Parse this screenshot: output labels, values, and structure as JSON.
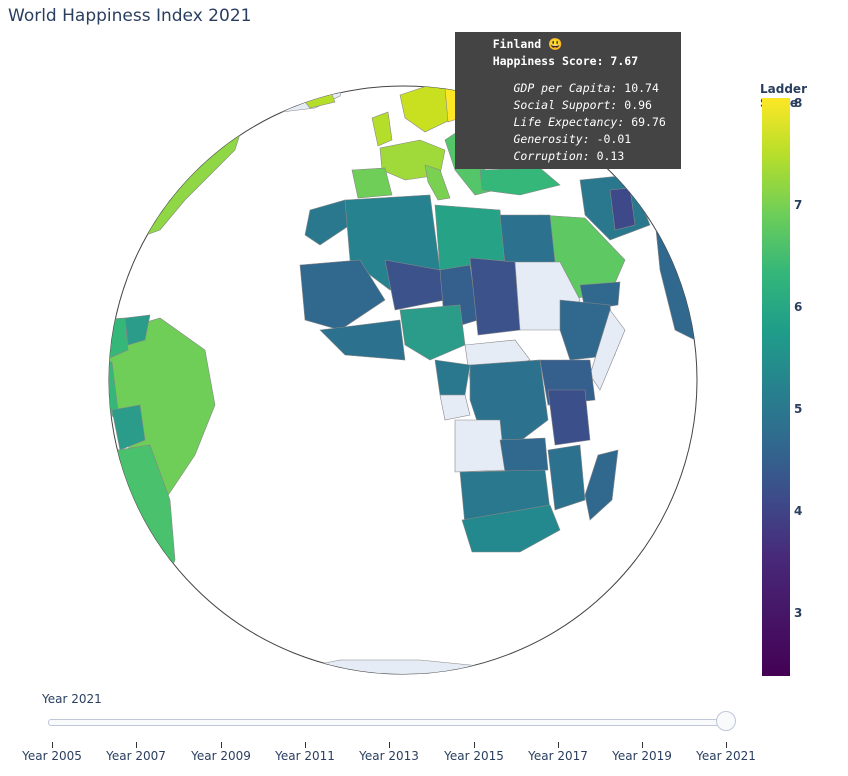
{
  "title": "World Happiness Index 2021",
  "map": {
    "projection": "orthographic",
    "colorscale": "Viridis",
    "missing_color": "#e5ecf6",
    "hover": {
      "country": "Finland",
      "emoji": "😃",
      "happiness_label": "Happiness Score",
      "happiness_value": "7.67",
      "gdp_label": "GDP per Capita",
      "gdp_value": "10.74",
      "social_label": "Social Support",
      "social_value": "0.96",
      "life_label": "Life Expectancy",
      "life_value": "69.76",
      "generosity_label": "Generosity",
      "generosity_value": "-0.01",
      "corruption_label": "Corruption",
      "corruption_value": "0.13"
    }
  },
  "colorbar": {
    "title": "Ladder Score",
    "ticks": [
      "8",
      "7",
      "6",
      "5",
      "4",
      "3"
    ]
  },
  "slider": {
    "current_label": "Year 2021",
    "steps": [
      "Year 2005",
      "Year 2007",
      "Year 2009",
      "Year 2011",
      "Year 2013",
      "Year 2015",
      "Year 2017",
      "Year 2019",
      "Year 2021"
    ],
    "selected_index": 8
  }
}
